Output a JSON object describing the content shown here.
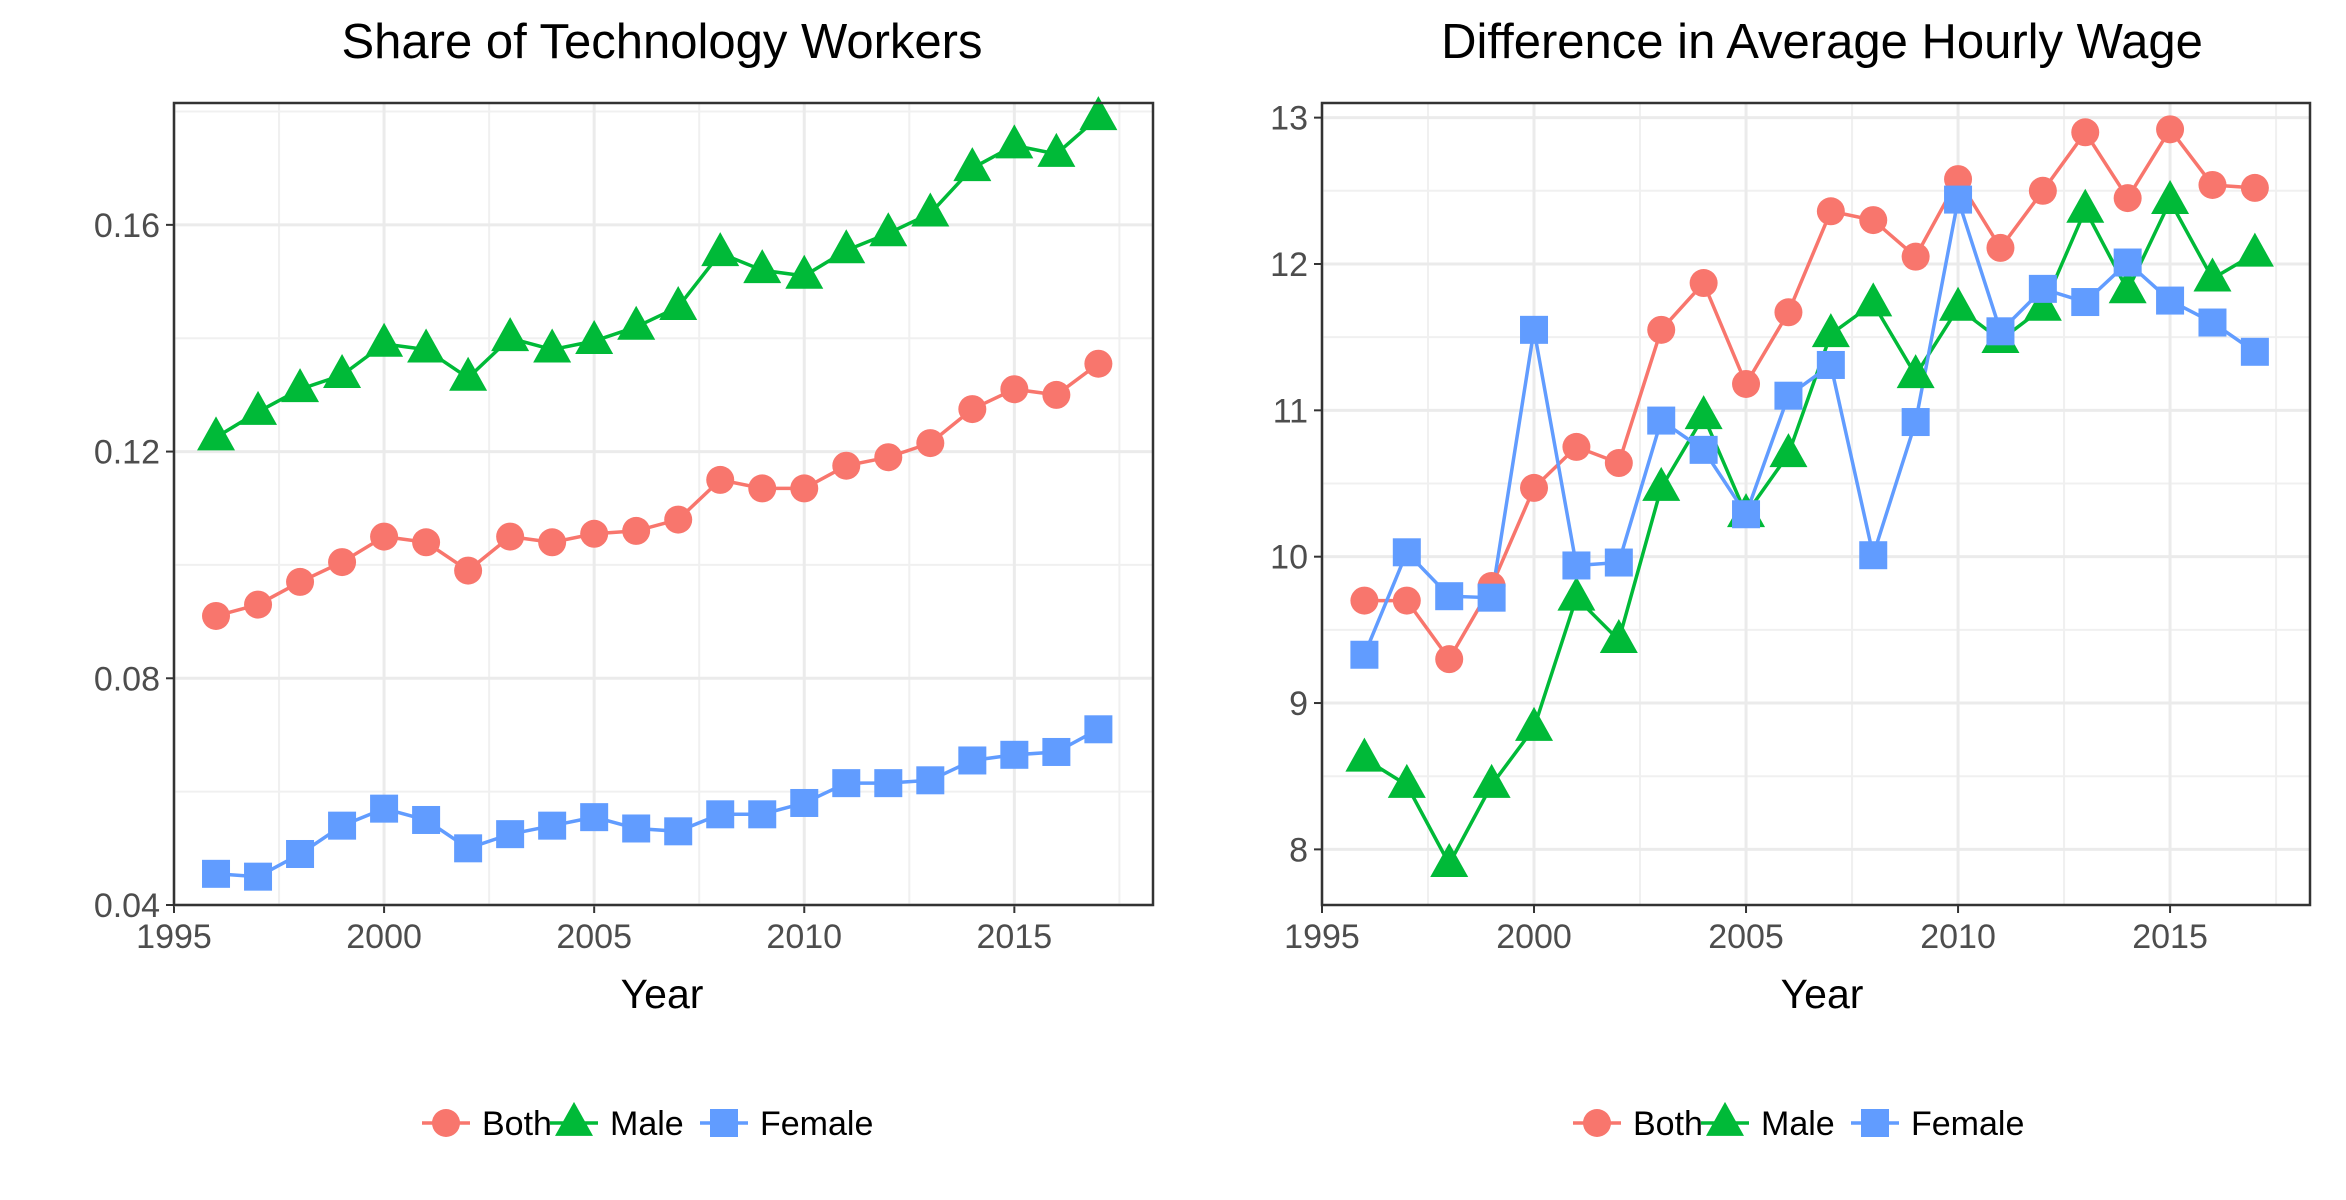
{
  "chart_data": [
    {
      "type": "line",
      "title": "Share of Technology Workers",
      "xlabel": "Year",
      "ylabel": "",
      "x": [
        1996,
        1997,
        1998,
        1999,
        2000,
        2001,
        2002,
        2003,
        2004,
        2005,
        2006,
        2007,
        2008,
        2009,
        2010,
        2011,
        2012,
        2013,
        2014,
        2015,
        2016,
        2017
      ],
      "xlim": [
        1995,
        2018.3
      ],
      "ylim": [
        0.04,
        0.1815
      ],
      "xticks": [
        "1995",
        "2000",
        "2005",
        "2010",
        "2015"
      ],
      "yticks": [
        "0.04",
        "0.08",
        "0.12",
        "0.16"
      ],
      "grid": true,
      "legend_position": "bottom",
      "series": [
        {
          "name": "Both",
          "color": "#F8766D",
          "marker": "circle",
          "values": [
            0.091,
            0.093,
            0.097,
            0.1005,
            0.105,
            0.104,
            0.099,
            0.105,
            0.104,
            0.1055,
            0.106,
            0.108,
            0.115,
            0.1135,
            0.1135,
            0.1175,
            0.119,
            0.1215,
            0.1275,
            0.131,
            0.13,
            0.1355
          ]
        },
        {
          "name": "Male",
          "color": "#00BA38",
          "marker": "triangle",
          "values": [
            0.1225,
            0.127,
            0.131,
            0.1335,
            0.139,
            0.138,
            0.133,
            0.14,
            0.138,
            0.1395,
            0.142,
            0.1455,
            0.155,
            0.152,
            0.151,
            0.1555,
            0.1585,
            0.162,
            0.17,
            0.174,
            0.1725,
            0.179
          ]
        },
        {
          "name": "Female",
          "color": "#619CFF",
          "marker": "square",
          "values": [
            0.0455,
            0.045,
            0.049,
            0.054,
            0.057,
            0.055,
            0.05,
            0.0525,
            0.054,
            0.0555,
            0.0535,
            0.053,
            0.056,
            0.056,
            0.058,
            0.0615,
            0.0615,
            0.062,
            0.0655,
            0.0665,
            0.067,
            0.071
          ]
        }
      ]
    },
    {
      "type": "line",
      "title": "Difference in Average Hourly Wage",
      "xlabel": "Year",
      "ylabel": "",
      "x": [
        1996,
        1997,
        1998,
        1999,
        2000,
        2001,
        2002,
        2003,
        2004,
        2005,
        2006,
        2007,
        2008,
        2009,
        2010,
        2011,
        2012,
        2013,
        2014,
        2015,
        2016,
        2017
      ],
      "xlim": [
        1995,
        2018.3
      ],
      "ylim": [
        7.62,
        13.1
      ],
      "xticks": [
        "1995",
        "2000",
        "2005",
        "2010",
        "2015"
      ],
      "yticks": [
        "8",
        "9",
        "10",
        "11",
        "12",
        "13"
      ],
      "grid": true,
      "legend_position": "bottom",
      "series": [
        {
          "name": "Both",
          "color": "#F8766D",
          "marker": "circle",
          "values": [
            9.7,
            9.7,
            9.3,
            9.8,
            10.47,
            10.75,
            10.64,
            11.55,
            11.87,
            11.18,
            11.67,
            12.36,
            12.3,
            12.05,
            12.58,
            12.11,
            12.5,
            12.9,
            12.45,
            12.92,
            12.54,
            12.52
          ]
        },
        {
          "name": "Male",
          "color": "#00BA38",
          "marker": "triangle",
          "values": [
            8.62,
            8.44,
            7.9,
            8.44,
            8.83,
            9.72,
            9.43,
            10.47,
            10.96,
            10.29,
            10.7,
            11.52,
            11.73,
            11.24,
            11.7,
            11.48,
            11.7,
            12.37,
            11.82,
            12.43,
            11.9,
            12.07
          ]
        },
        {
          "name": "Female",
          "color": "#619CFF",
          "marker": "square",
          "values": [
            9.33,
            10.03,
            9.73,
            9.72,
            11.55,
            9.94,
            9.96,
            10.93,
            10.73,
            10.29,
            11.1,
            11.31,
            10.01,
            10.92,
            12.44,
            11.54,
            11.83,
            11.74,
            12.01,
            11.75,
            11.6,
            11.4
          ]
        }
      ]
    }
  ]
}
